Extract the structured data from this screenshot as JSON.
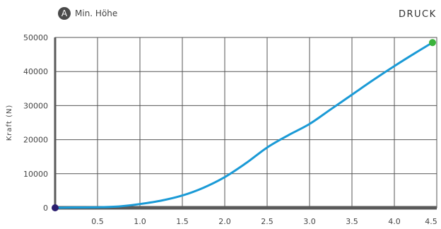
{
  "header": {
    "marker_letter": "A",
    "marker_text": "Min. Höhe",
    "mode_text": "DRUCK"
  },
  "chart_data": {
    "type": "line",
    "title": "",
    "xlabel": "",
    "ylabel": "Kraft (N)",
    "xlim": [
      0,
      4.5
    ],
    "ylim": [
      0,
      50000
    ],
    "x_ticks": [
      "0.5",
      "1.0",
      "1.5",
      "2.0",
      "2.5",
      "3.0",
      "3.5",
      "4.0",
      "4.5"
    ],
    "y_ticks": [
      "0",
      "10000",
      "20000",
      "30000",
      "40000",
      "50000"
    ],
    "grid": true,
    "series": [
      {
        "color": "#1a9ad6",
        "x": [
          0,
          0.25,
          0.5,
          0.75,
          1.0,
          1.25,
          1.5,
          1.75,
          2.0,
          2.25,
          2.5,
          2.75,
          3.0,
          3.25,
          3.5,
          3.75,
          4.0,
          4.25,
          4.45
        ],
        "y": [
          0,
          100,
          150,
          400,
          1100,
          2100,
          3600,
          5900,
          9000,
          13100,
          17700,
          21300,
          24600,
          28900,
          33200,
          37500,
          41600,
          45500,
          48500
        ]
      }
    ],
    "start_point": {
      "x": 0,
      "y": 0,
      "color": "#2a1d6e"
    },
    "end_point": {
      "x": 4.45,
      "y": 48500,
      "color": "#3bb33b"
    }
  }
}
